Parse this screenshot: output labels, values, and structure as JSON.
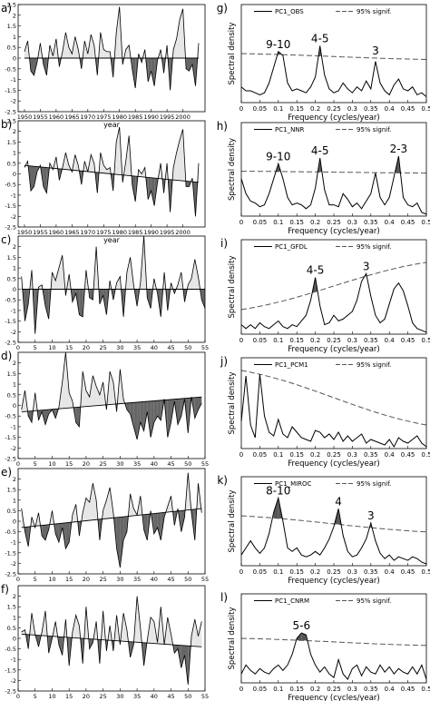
{
  "figure": {
    "axis_labels": {
      "year": "year",
      "frequency": "Frequency (cycles/year)",
      "spectral": "Spectral density"
    },
    "colors": {
      "positive_fill": "#e6e6e6",
      "negative_fill": "#666666",
      "line": "#000000",
      "peak_fill": "#555555"
    }
  },
  "chart_data": [
    {
      "panel": "a)",
      "type": "area",
      "x_start": 1950,
      "x_step": 1,
      "xlim": [
        1948,
        2007
      ],
      "ylim": [
        -2.5,
        2.5
      ],
      "xticks": [
        1950,
        1955,
        1960,
        1965,
        1970,
        1975,
        1980,
        1985,
        1990,
        1995,
        2000
      ],
      "yticks": [
        -2.5,
        -2,
        -1.5,
        -1,
        -0.5,
        0,
        0.5,
        1,
        1.5,
        2,
        2.5
      ],
      "xlabel": "year",
      "trend": [
        0.0,
        0.0
      ],
      "values": [
        0.3,
        0.8,
        -0.6,
        -0.8,
        -0.2,
        0.7,
        -0.3,
        -0.8,
        0.6,
        0.1,
        0.9,
        -0.4,
        0.3,
        1.2,
        0.5,
        0.2,
        1.0,
        0.4,
        -0.5,
        0.8,
        0.2,
        1.1,
        0.6,
        -0.8,
        1.2,
        0.4,
        0.3,
        0.3,
        -0.9,
        1.2,
        2.4,
        -0.3,
        0.4,
        0.6,
        -0.5,
        -1.4,
        0.2,
        -0.2,
        0.4,
        -1.1,
        -0.6,
        -1.3,
        -0.1,
        0.4,
        -0.7,
        0.6,
        -1.5,
        0.4,
        0.9,
        1.8,
        2.3,
        -0.5,
        -0.6,
        -0.3,
        -1.3,
        0.7
      ]
    },
    {
      "panel": "b)",
      "type": "area",
      "x_start": 1950,
      "x_step": 1,
      "xlim": [
        1948,
        2007
      ],
      "ylim": [
        -2.5,
        2.5
      ],
      "xticks": [
        1950,
        1955,
        1960,
        1965,
        1970,
        1975,
        1980,
        1985,
        1990,
        1995,
        2000
      ],
      "yticks": [
        -2.5,
        -2,
        -1.5,
        -1,
        -0.5,
        0,
        0.5,
        1,
        1.5,
        2,
        2.5
      ],
      "xlabel": "year",
      "trend": [
        0.4,
        -0.4
      ],
      "values": [
        0.3,
        0.6,
        -0.8,
        -0.6,
        0.1,
        0.4,
        -0.6,
        -0.9,
        0.5,
        0.2,
        0.8,
        -0.3,
        0.3,
        1.0,
        0.4,
        0.1,
        0.9,
        0.4,
        -0.5,
        0.6,
        0.1,
        0.9,
        0.5,
        -0.9,
        1.0,
        0.4,
        0.2,
        0.3,
        -0.8,
        1.5,
        2.2,
        -0.4,
        0.6,
        1.8,
        -0.5,
        -1.3,
        0.2,
        0.0,
        0.3,
        -1.2,
        -0.8,
        -1.5,
        -0.4,
        0.5,
        -0.9,
        0.5,
        -1.8,
        0.3,
        1.0,
        1.6,
        2.1,
        -0.6,
        -0.6,
        -0.2,
        -2.0,
        0.5
      ]
    },
    {
      "panel": "c)",
      "type": "area",
      "x_start": 1,
      "x_step": 1,
      "xlim": [
        0,
        55
      ],
      "ylim": [
        -2.5,
        2.5
      ],
      "xticks": [
        0,
        5,
        10,
        15,
        20,
        25,
        30,
        35,
        40,
        45,
        50,
        55
      ],
      "yticks": [
        -2.5,
        -2,
        -1.5,
        -1,
        -0.5,
        0,
        0.5,
        1,
        1.5,
        2
      ],
      "xlabel": "",
      "trend": [
        0.0,
        0.0
      ],
      "values": [
        0.6,
        -1.5,
        -0.7,
        0.9,
        -2.1,
        0.1,
        0.2,
        -0.8,
        -1.4,
        0.8,
        0.4,
        1.0,
        1.6,
        -0.3,
        0.7,
        -0.6,
        -0.2,
        -1.2,
        -1.3,
        0.9,
        -0.4,
        -0.5,
        2.0,
        -0.7,
        -0.3,
        -1.2,
        0.4,
        -0.5,
        0.3,
        0.6,
        -1.3,
        0.8,
        1.5,
        0.2,
        -0.8,
        0.3,
        2.5,
        -0.4,
        -0.9,
        0.5,
        -0.2,
        -1.3,
        0.8,
        -1.0,
        0.3,
        -0.2,
        0.2,
        0.8,
        -0.6,
        0.2,
        0.5,
        1.4,
        0.6,
        -0.5,
        -0.9
      ]
    },
    {
      "panel": "d)",
      "type": "area",
      "x_start": 1,
      "x_step": 1,
      "xlim": [
        0,
        55
      ],
      "ylim": [
        -2.5,
        2.5
      ],
      "xticks": [
        0,
        5,
        10,
        15,
        20,
        25,
        30,
        35,
        40,
        45,
        50,
        55
      ],
      "yticks": [
        -2.5,
        -2,
        -1.5,
        -1,
        -0.5,
        0,
        0.5,
        1,
        1.5,
        2
      ],
      "xlabel": "",
      "trend": [
        -0.3,
        0.4
      ],
      "values": [
        -0.2,
        0.7,
        -0.5,
        -0.8,
        0.6,
        -0.7,
        -0.3,
        -0.9,
        -0.4,
        -0.2,
        -0.6,
        -0.1,
        1.1,
        2.5,
        0.6,
        0.2,
        -0.8,
        -1.0,
        1.6,
        0.7,
        0.4,
        1.4,
        0.9,
        0.5,
        1.1,
        -0.2,
        1.6,
        1.1,
        -0.3,
        1.7,
        0.3,
        -0.2,
        -0.4,
        -1.0,
        -1.6,
        -0.8,
        -1.2,
        -0.3,
        -1.5,
        -0.8,
        -0.5,
        -0.7,
        0.3,
        -1.5,
        -0.8,
        0.2,
        -0.9,
        -0.5,
        0.3,
        -1.3,
        0.4,
        -0.6,
        -0.2,
        0.1
      ]
    },
    {
      "panel": "e)",
      "type": "area",
      "x_start": 1,
      "x_step": 1,
      "xlim": [
        0,
        55
      ],
      "ylim": [
        -2.5,
        2.5
      ],
      "xticks": [
        0,
        5,
        10,
        15,
        20,
        25,
        30,
        35,
        40,
        45,
        50,
        55
      ],
      "yticks": [
        -2.5,
        -2,
        -1.5,
        -1,
        -0.5,
        0,
        0.5,
        1,
        1.5,
        2
      ],
      "xlabel": "",
      "trend": [
        -0.3,
        0.6
      ],
      "values": [
        0.6,
        -0.5,
        -1.2,
        0.2,
        -0.3,
        0.4,
        -0.7,
        -0.9,
        -0.4,
        0.5,
        -0.6,
        -1.0,
        -0.3,
        -1.3,
        -1.0,
        0.3,
        0.8,
        -0.7,
        0.4,
        1.1,
        0.9,
        1.8,
        1.0,
        -0.9,
        0.5,
        1.0,
        1.6,
        0.4,
        -1.3,
        -2.2,
        -0.9,
        -0.5,
        1.3,
        0.6,
        0.3,
        1.2,
        -0.4,
        -0.9,
        0.5,
        -0.6,
        -0.3,
        -0.9,
        0.2,
        0.7,
        1.2,
        -0.2,
        0.6,
        -0.5,
        0.2,
        2.3,
        0.4,
        -0.9,
        1.8,
        0.4
      ]
    },
    {
      "panel": "f)",
      "type": "area",
      "x_start": 1,
      "x_step": 1,
      "xlim": [
        0,
        55
      ],
      "ylim": [
        -2.5,
        2.5
      ],
      "xticks": [
        0,
        5,
        10,
        15,
        20,
        25,
        30,
        35,
        40,
        45,
        50,
        55
      ],
      "yticks": [
        -2.5,
        -2,
        -1.5,
        -1,
        -0.5,
        0,
        0.5,
        1,
        1.5,
        2
      ],
      "xlabel": "",
      "trend": [
        0.2,
        -0.4
      ],
      "values": [
        0.3,
        0.4,
        -0.5,
        1.2,
        0.2,
        -0.4,
        0.3,
        1.3,
        -0.7,
        0.0,
        0.8,
        -0.3,
        -0.8,
        0.9,
        -1.3,
        0.3,
        1.1,
        0.6,
        -1.2,
        1.5,
        -0.5,
        -0.2,
        0.8,
        -1.2,
        1.3,
        -0.6,
        0.6,
        -0.6,
        1.1,
        -0.3,
        1.2,
        0.4,
        -0.9,
        -0.3,
        2.0,
        0.5,
        -1.3,
        -0.1,
        1.0,
        0.8,
        -0.2,
        1.5,
        -0.3,
        1.0,
        0.2,
        -0.7,
        -0.5,
        -1.4,
        -0.8,
        -2.2,
        0.1,
        0.9,
        0.1,
        0.8
      ]
    },
    {
      "panel": "g)",
      "type": "line",
      "legend": [
        "PC1_OBS",
        "95% signif."
      ],
      "xlim": [
        0,
        0.5
      ],
      "ylim": [
        0,
        5
      ],
      "xticks": [
        0,
        0.05,
        0.1,
        0.15,
        0.2,
        0.25,
        0.3,
        0.35,
        0.4,
        0.45,
        0.5
      ],
      "xlabel": "Frequency (cycles/year)",
      "ylabel": "Spectral density",
      "freq_step": 0.0125,
      "spectrum": [
        0.8,
        0.6,
        0.6,
        0.5,
        0.4,
        0.5,
        1.0,
        1.8,
        2.6,
        2.4,
        1.0,
        0.6,
        0.7,
        0.6,
        0.5,
        0.8,
        1.3,
        2.9,
        1.4,
        0.7,
        0.5,
        0.6,
        1.0,
        0.7,
        0.5,
        0.8,
        0.6,
        1.1,
        0.7,
        2.1,
        1.0,
        0.6,
        0.4,
        0.9,
        1.2,
        0.7,
        0.6,
        0.8,
        0.4,
        0.5,
        0.3
      ],
      "signif": [
        2.5,
        2.2
      ],
      "peaks": [
        {
          "label": "9-10",
          "freq": 0.1
        },
        {
          "label": "4-5",
          "freq": 0.2125
        },
        {
          "label": "3",
          "freq": 0.3625
        }
      ]
    },
    {
      "panel": "h)",
      "type": "line",
      "legend": [
        "PC1_NNR",
        "95% signif."
      ],
      "xlim": [
        0,
        0.5
      ],
      "ylim": [
        0,
        5
      ],
      "xticks": [
        0,
        0.05,
        0.1,
        0.15,
        0.2,
        0.25,
        0.3,
        0.35,
        0.4,
        0.45,
        0.5
      ],
      "xlabel": "Frequency (cycles/year)",
      "ylabel": "Spectral density",
      "freq_step": 0.0125,
      "spectrum": [
        2.0,
        1.2,
        0.8,
        0.7,
        0.5,
        0.6,
        1.2,
        2.0,
        2.8,
        2.0,
        1.0,
        0.6,
        0.7,
        0.6,
        0.4,
        0.6,
        1.5,
        3.1,
        1.4,
        0.6,
        0.6,
        0.5,
        1.2,
        0.9,
        0.5,
        0.7,
        0.4,
        0.8,
        1.2,
        2.3,
        1.0,
        0.6,
        1.0,
        2.1,
        3.2,
        1.0,
        0.6,
        0.5,
        0.7,
        0.2,
        0.1
      ],
      "signif": [
        2.4,
        2.3
      ],
      "peaks": [
        {
          "label": "9-10",
          "freq": 0.1
        },
        {
          "label": "4-5",
          "freq": 0.2125
        },
        {
          "label": "2-3",
          "freq": 0.425
        }
      ]
    },
    {
      "panel": "i)",
      "type": "line",
      "legend": [
        "PC1_GFDL",
        "95% signif."
      ],
      "xlim": [
        0,
        0.5
      ],
      "ylim": [
        0,
        5
      ],
      "xticks": [
        0,
        0.05,
        0.1,
        0.15,
        0.2,
        0.25,
        0.3,
        0.35,
        0.4,
        0.45,
        0.5
      ],
      "xlabel": "Frequency (cycles/year)",
      "ylabel": "Spectral density",
      "freq_step": 0.0125,
      "spectrum": [
        0.5,
        0.3,
        0.5,
        0.3,
        0.6,
        0.4,
        0.3,
        0.5,
        0.7,
        0.4,
        0.3,
        0.5,
        0.4,
        0.7,
        1.0,
        1.8,
        3.0,
        1.5,
        0.5,
        0.6,
        1.0,
        0.7,
        0.8,
        1.0,
        1.2,
        1.8,
        2.8,
        3.2,
        2.0,
        1.0,
        0.6,
        0.8,
        1.6,
        2.4,
        2.7,
        2.3,
        1.5,
        0.6,
        0.3,
        0.2,
        0.1
      ],
      "signif": [
        1.3,
        3.8
      ],
      "peaks": [
        {
          "label": "4-5",
          "freq": 0.2
        },
        {
          "label": "3",
          "freq": 0.3375
        }
      ]
    },
    {
      "panel": "j)",
      "type": "line",
      "legend": [
        "PC1_PCM1",
        "95% signif."
      ],
      "xlim": [
        0,
        0.5
      ],
      "ylim": [
        0,
        5
      ],
      "xticks": [
        0,
        0.05,
        0.1,
        0.15,
        0.2,
        0.25,
        0.3,
        0.35,
        0.4,
        0.45,
        0.5
      ],
      "xlabel": "Frequency (cycles/year)",
      "ylabel": "Spectral density",
      "freq_step": 0.0125,
      "spectrum": [
        1.5,
        4.0,
        1.3,
        0.6,
        4.1,
        1.8,
        0.9,
        0.7,
        1.6,
        0.8,
        0.6,
        1.2,
        0.9,
        0.6,
        0.5,
        0.4,
        1.0,
        0.9,
        0.6,
        0.8,
        0.5,
        0.9,
        0.4,
        0.7,
        0.4,
        0.6,
        0.8,
        0.3,
        0.5,
        0.4,
        0.3,
        0.2,
        0.5,
        0.1,
        0.6,
        0.4,
        0.3,
        0.5,
        0.7,
        0.3,
        0.1
      ],
      "signif": [
        4.3,
        1.3
      ],
      "peaks": []
    },
    {
      "panel": "k)",
      "type": "line",
      "legend": [
        "PC1_MIROC",
        "95% signif."
      ],
      "xlim": [
        0,
        0.5
      ],
      "ylim": [
        0,
        5
      ],
      "xticks": [
        0,
        0.05,
        0.1,
        0.15,
        0.2,
        0.25,
        0.3,
        0.35,
        0.4,
        0.45,
        0.5
      ],
      "xlabel": "Frequency (cycles/year)",
      "ylabel": "Spectral density",
      "freq_step": 0.0125,
      "spectrum": [
        0.6,
        1.0,
        1.4,
        1.0,
        0.7,
        1.0,
        1.8,
        3.0,
        3.8,
        2.5,
        1.0,
        0.8,
        1.0,
        0.6,
        0.5,
        0.6,
        0.8,
        0.6,
        1.0,
        1.5,
        2.2,
        3.2,
        1.7,
        0.8,
        0.5,
        0.6,
        1.0,
        1.5,
        2.4,
        1.4,
        0.7,
        0.4,
        0.6,
        0.3,
        0.5,
        0.4,
        0.3,
        0.5,
        0.4,
        0.2,
        0.1
      ],
      "signif": [
        2.8,
        1.9
      ],
      "peaks": [
        {
          "label": "8-10",
          "freq": 0.1
        },
        {
          "label": "4",
          "freq": 0.2625
        },
        {
          "label": "3",
          "freq": 0.35
        }
      ]
    },
    {
      "panel": "l)",
      "type": "line",
      "legend": [
        "PC1_CNRM",
        "95% signif."
      ],
      "xlim": [
        0,
        0.5
      ],
      "ylim": [
        0,
        5
      ],
      "xticks": [
        0,
        0.05,
        0.1,
        0.15,
        0.2,
        0.25,
        0.3,
        0.35,
        0.4,
        0.45,
        0.5
      ],
      "xlabel": "Frequency (cycles/year)",
      "ylabel": "Spectral density",
      "freq_step": 0.0125,
      "spectrum": [
        0.5,
        1.0,
        0.7,
        0.5,
        0.8,
        0.6,
        0.5,
        0.8,
        1.0,
        0.7,
        1.0,
        1.6,
        2.5,
        2.8,
        2.7,
        1.6,
        1.0,
        0.6,
        0.9,
        0.5,
        0.3,
        1.3,
        0.5,
        0.2,
        0.8,
        1.0,
        0.4,
        0.9,
        0.6,
        0.5,
        1.0,
        0.6,
        0.9,
        0.5,
        0.8,
        0.6,
        0.5,
        0.9,
        0.5,
        1.0,
        0.2
      ],
      "signif": [
        2.5,
        2.1
      ],
      "peaks": [
        {
          "label": "5-6",
          "freq": 0.1625
        }
      ]
    }
  ]
}
